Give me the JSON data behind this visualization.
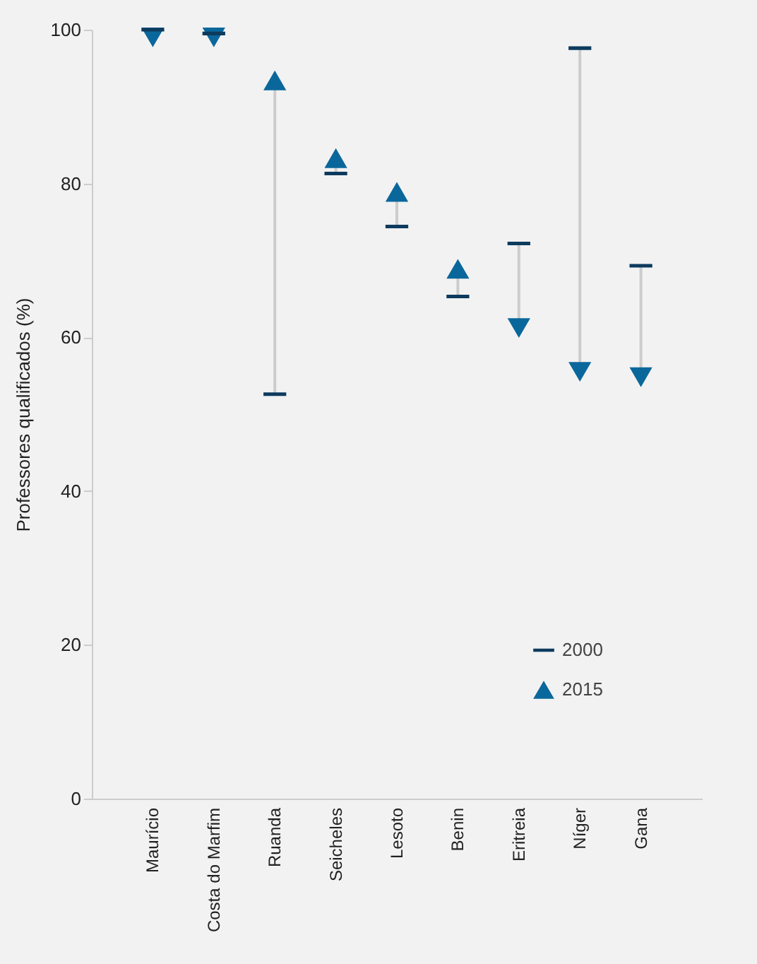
{
  "chart_data": {
    "type": "scatter",
    "ylabel": "Professores qualificados (%)",
    "categories": [
      "Maurício",
      "Costa do Marfim",
      "Ruanda",
      "Seicheles",
      "Lesoto",
      "Benin",
      "Eritreia",
      "Níger",
      "Gana"
    ],
    "series": [
      {
        "name": "2000",
        "color": "#0d3b5e",
        "values": [
          100,
          99.5,
          52.6,
          81.3,
          74.4,
          65.3,
          72.2,
          97.6,
          69.3
        ]
      },
      {
        "name": "2015",
        "color": "#0a679b",
        "marker": "triangle",
        "values": [
          99,
          99,
          93.4,
          83.3,
          78.9,
          68.9,
          61.2,
          55.5,
          54.8
        ]
      }
    ],
    "ylim": [
      0,
      100
    ],
    "yticks": [
      0,
      20,
      40,
      60,
      80,
      100
    ],
    "grid": false,
    "legend": "bottom right"
  }
}
